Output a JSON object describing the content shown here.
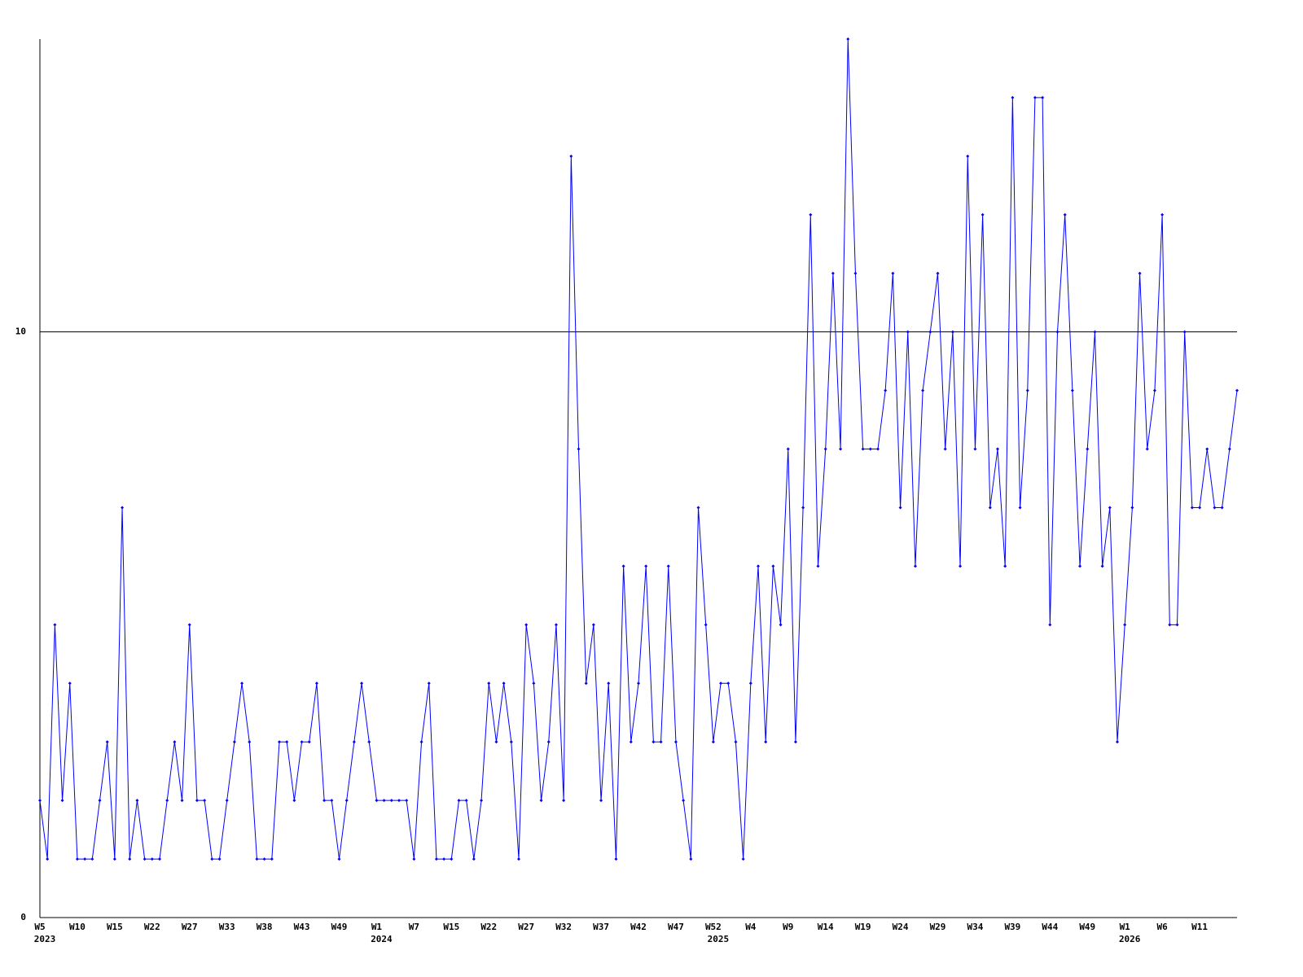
{
  "chart_data": {
    "type": "line",
    "categories": [
      "W5",
      null,
      null,
      null,
      null,
      "W10",
      null,
      null,
      null,
      null,
      "W15",
      null,
      null,
      null,
      null,
      "W22",
      null,
      null,
      null,
      null,
      "W27",
      null,
      null,
      null,
      null,
      "W33",
      null,
      null,
      null,
      null,
      "W38",
      null,
      null,
      null,
      null,
      "W43",
      null,
      null,
      null,
      null,
      "W49",
      null,
      null,
      null,
      null,
      "W1",
      null,
      null,
      null,
      null,
      "W7",
      null,
      null,
      null,
      null,
      "W15",
      null,
      null,
      null,
      null,
      "W22",
      null,
      null,
      null,
      null,
      "W27",
      null,
      null,
      null,
      null,
      "W32",
      null,
      null,
      null,
      null,
      "W37",
      null,
      null,
      null,
      null,
      "W42",
      null,
      null,
      null,
      null,
      "W47",
      null,
      null,
      null,
      null,
      "W52",
      null,
      null,
      null,
      null,
      "W4",
      null,
      null,
      null,
      null,
      "W9",
      null,
      null,
      null,
      null,
      "W14",
      null,
      null,
      null,
      null,
      "W19",
      null,
      null,
      null,
      null,
      "W24",
      null,
      null,
      null,
      null,
      "W29",
      null,
      null,
      null,
      null,
      "W34",
      null,
      null,
      null,
      null,
      "W39",
      null,
      null,
      null,
      null,
      "W44",
      null,
      null,
      null,
      null,
      "W49",
      null,
      null,
      null,
      null,
      "W1",
      null,
      null,
      null,
      null,
      "W6",
      null,
      null,
      null,
      null,
      "W11",
      null,
      null,
      null,
      null,
      null
    ],
    "years": [
      "2023",
      null,
      null,
      null,
      null,
      null,
      null,
      null,
      null,
      null,
      null,
      null,
      null,
      null,
      null,
      null,
      null,
      null,
      null,
      null,
      null,
      null,
      null,
      null,
      null,
      null,
      null,
      null,
      null,
      null,
      null,
      null,
      null,
      null,
      null,
      null,
      null,
      null,
      null,
      null,
      null,
      null,
      null,
      null,
      null,
      "2024",
      null,
      null,
      null,
      null,
      null,
      null,
      null,
      null,
      null,
      null,
      null,
      null,
      null,
      null,
      null,
      null,
      null,
      null,
      null,
      null,
      null,
      null,
      null,
      null,
      null,
      null,
      null,
      null,
      null,
      null,
      null,
      null,
      null,
      null,
      null,
      null,
      null,
      null,
      null,
      null,
      null,
      null,
      null,
      null,
      "2025",
      null,
      null,
      null,
      null,
      null,
      null,
      null,
      null,
      null,
      null,
      null,
      null,
      null,
      null,
      null,
      null,
      null,
      null,
      null,
      null,
      null,
      null,
      null,
      null,
      null,
      null,
      null,
      null,
      null,
      null,
      null,
      null,
      null,
      null,
      null,
      null,
      null,
      null,
      null,
      null,
      null,
      null,
      null,
      null,
      null,
      null,
      null,
      null,
      null,
      null,
      null,
      null,
      null,
      null,
      "2026",
      null,
      null,
      null,
      null,
      null,
      null,
      null,
      null,
      null,
      null,
      null,
      null,
      null,
      null,
      null
    ],
    "series": [
      {
        "color": "#0000ff",
        "values": [
          2,
          1,
          5,
          2,
          4,
          1,
          1,
          1,
          2,
          3,
          1,
          7,
          1,
          2,
          1,
          1,
          1,
          2,
          3,
          2,
          5,
          2,
          2,
          1,
          1,
          2,
          3,
          4,
          3,
          1,
          1,
          1,
          3,
          3,
          2,
          3,
          3,
          4,
          2,
          2,
          1,
          2,
          3,
          4,
          3,
          2,
          2,
          2,
          2,
          2,
          1,
          3,
          4,
          1,
          1,
          1,
          2,
          2,
          1,
          2,
          4,
          3,
          4,
          3,
          1,
          5,
          4,
          2,
          3,
          5,
          2,
          13,
          8,
          4,
          5,
          2,
          4,
          1,
          6,
          3,
          4,
          6,
          3,
          3,
          6,
          3,
          2,
          1,
          7,
          5,
          3,
          4,
          4,
          3,
          1,
          4,
          6,
          3,
          6,
          5,
          8,
          3,
          7,
          12,
          6,
          8,
          11,
          8,
          15,
          11,
          8,
          8,
          8,
          9,
          11,
          7,
          10,
          6,
          9,
          10,
          11,
          8,
          10,
          6,
          13,
          8,
          12,
          7,
          8,
          6,
          14,
          7,
          9,
          14,
          14,
          5,
          10,
          12,
          9,
          6,
          8,
          10,
          6,
          7,
          3,
          5,
          7,
          11,
          8,
          9,
          12,
          5,
          5,
          10,
          7,
          7,
          8,
          7,
          7,
          8,
          9
        ]
      }
    ],
    "ylim": [
      0,
      15
    ],
    "yticks": [
      0,
      10
    ],
    "grid": true
  }
}
